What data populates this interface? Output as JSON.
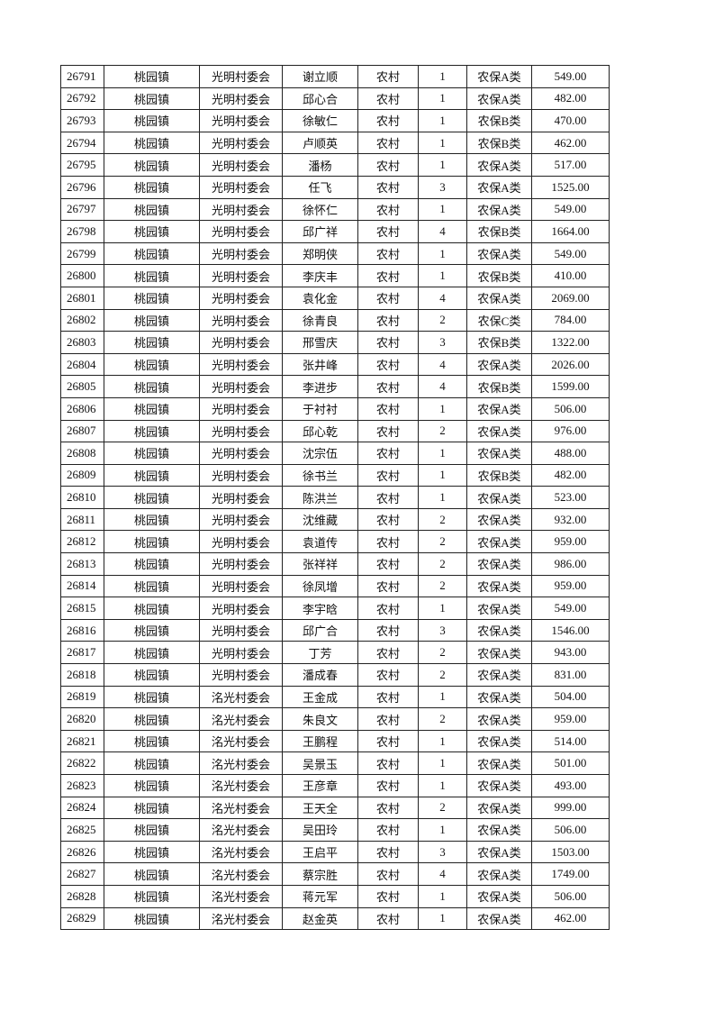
{
  "table": {
    "rows": [
      [
        "26791",
        "桃园镇",
        "光明村委会",
        "谢立顺",
        "农村",
        "1",
        "农保A类",
        "549.00"
      ],
      [
        "26792",
        "桃园镇",
        "光明村委会",
        "邱心合",
        "农村",
        "1",
        "农保A类",
        "482.00"
      ],
      [
        "26793",
        "桃园镇",
        "光明村委会",
        "徐敏仁",
        "农村",
        "1",
        "农保B类",
        "470.00"
      ],
      [
        "26794",
        "桃园镇",
        "光明村委会",
        "卢顺英",
        "农村",
        "1",
        "农保B类",
        "462.00"
      ],
      [
        "26795",
        "桃园镇",
        "光明村委会",
        "潘杨",
        "农村",
        "1",
        "农保A类",
        "517.00"
      ],
      [
        "26796",
        "桃园镇",
        "光明村委会",
        "任飞",
        "农村",
        "3",
        "农保A类",
        "1525.00"
      ],
      [
        "26797",
        "桃园镇",
        "光明村委会",
        "徐怀仁",
        "农村",
        "1",
        "农保A类",
        "549.00"
      ],
      [
        "26798",
        "桃园镇",
        "光明村委会",
        "邱广祥",
        "农村",
        "4",
        "农保B类",
        "1664.00"
      ],
      [
        "26799",
        "桃园镇",
        "光明村委会",
        "郑明侠",
        "农村",
        "1",
        "农保A类",
        "549.00"
      ],
      [
        "26800",
        "桃园镇",
        "光明村委会",
        "李庆丰",
        "农村",
        "1",
        "农保B类",
        "410.00"
      ],
      [
        "26801",
        "桃园镇",
        "光明村委会",
        "袁化金",
        "农村",
        "4",
        "农保A类",
        "2069.00"
      ],
      [
        "26802",
        "桃园镇",
        "光明村委会",
        "徐青良",
        "农村",
        "2",
        "农保C类",
        "784.00"
      ],
      [
        "26803",
        "桃园镇",
        "光明村委会",
        "邢雪庆",
        "农村",
        "3",
        "农保B类",
        "1322.00"
      ],
      [
        "26804",
        "桃园镇",
        "光明村委会",
        "张井峰",
        "农村",
        "4",
        "农保A类",
        "2026.00"
      ],
      [
        "26805",
        "桃园镇",
        "光明村委会",
        "李进步",
        "农村",
        "4",
        "农保B类",
        "1599.00"
      ],
      [
        "26806",
        "桃园镇",
        "光明村委会",
        "于衬衬",
        "农村",
        "1",
        "农保A类",
        "506.00"
      ],
      [
        "26807",
        "桃园镇",
        "光明村委会",
        "邱心乾",
        "农村",
        "2",
        "农保A类",
        "976.00"
      ],
      [
        "26808",
        "桃园镇",
        "光明村委会",
        "沈宗伍",
        "农村",
        "1",
        "农保A类",
        "488.00"
      ],
      [
        "26809",
        "桃园镇",
        "光明村委会",
        "徐书兰",
        "农村",
        "1",
        "农保B类",
        "482.00"
      ],
      [
        "26810",
        "桃园镇",
        "光明村委会",
        "陈洪兰",
        "农村",
        "1",
        "农保A类",
        "523.00"
      ],
      [
        "26811",
        "桃园镇",
        "光明村委会",
        "沈维藏",
        "农村",
        "2",
        "农保A类",
        "932.00"
      ],
      [
        "26812",
        "桃园镇",
        "光明村委会",
        "袁道传",
        "农村",
        "2",
        "农保A类",
        "959.00"
      ],
      [
        "26813",
        "桃园镇",
        "光明村委会",
        "张祥祥",
        "农村",
        "2",
        "农保A类",
        "986.00"
      ],
      [
        "26814",
        "桃园镇",
        "光明村委会",
        "徐凤增",
        "农村",
        "2",
        "农保A类",
        "959.00"
      ],
      [
        "26815",
        "桃园镇",
        "光明村委会",
        "李宇晗",
        "农村",
        "1",
        "农保A类",
        "549.00"
      ],
      [
        "26816",
        "桃园镇",
        "光明村委会",
        "邱广合",
        "农村",
        "3",
        "农保A类",
        "1546.00"
      ],
      [
        "26817",
        "桃园镇",
        "光明村委会",
        "丁芳",
        "农村",
        "2",
        "农保A类",
        "943.00"
      ],
      [
        "26818",
        "桃园镇",
        "光明村委会",
        "潘成春",
        "农村",
        "2",
        "农保A类",
        "831.00"
      ],
      [
        "26819",
        "桃园镇",
        "洺光村委会",
        "王金成",
        "农村",
        "1",
        "农保A类",
        "504.00"
      ],
      [
        "26820",
        "桃园镇",
        "洺光村委会",
        "朱良文",
        "农村",
        "2",
        "农保A类",
        "959.00"
      ],
      [
        "26821",
        "桃园镇",
        "洺光村委会",
        "王鹏程",
        "农村",
        "1",
        "农保A类",
        "514.00"
      ],
      [
        "26822",
        "桃园镇",
        "洺光村委会",
        "吴景玉",
        "农村",
        "1",
        "农保A类",
        "501.00"
      ],
      [
        "26823",
        "桃园镇",
        "洺光村委会",
        "王彦章",
        "农村",
        "1",
        "农保A类",
        "493.00"
      ],
      [
        "26824",
        "桃园镇",
        "洺光村委会",
        "王天全",
        "农村",
        "2",
        "农保A类",
        "999.00"
      ],
      [
        "26825",
        "桃园镇",
        "洺光村委会",
        "吴田玲",
        "农村",
        "1",
        "农保A类",
        "506.00"
      ],
      [
        "26826",
        "桃园镇",
        "洺光村委会",
        "王启平",
        "农村",
        "3",
        "农保A类",
        "1503.00"
      ],
      [
        "26827",
        "桃园镇",
        "洺光村委会",
        "蔡宗胜",
        "农村",
        "4",
        "农保A类",
        "1749.00"
      ],
      [
        "26828",
        "桃园镇",
        "洺光村委会",
        "蒋元军",
        "农村",
        "1",
        "农保A类",
        "506.00"
      ],
      [
        "26829",
        "桃园镇",
        "洺光村委会",
        "赵金英",
        "农村",
        "1",
        "农保A类",
        "462.00"
      ]
    ]
  }
}
